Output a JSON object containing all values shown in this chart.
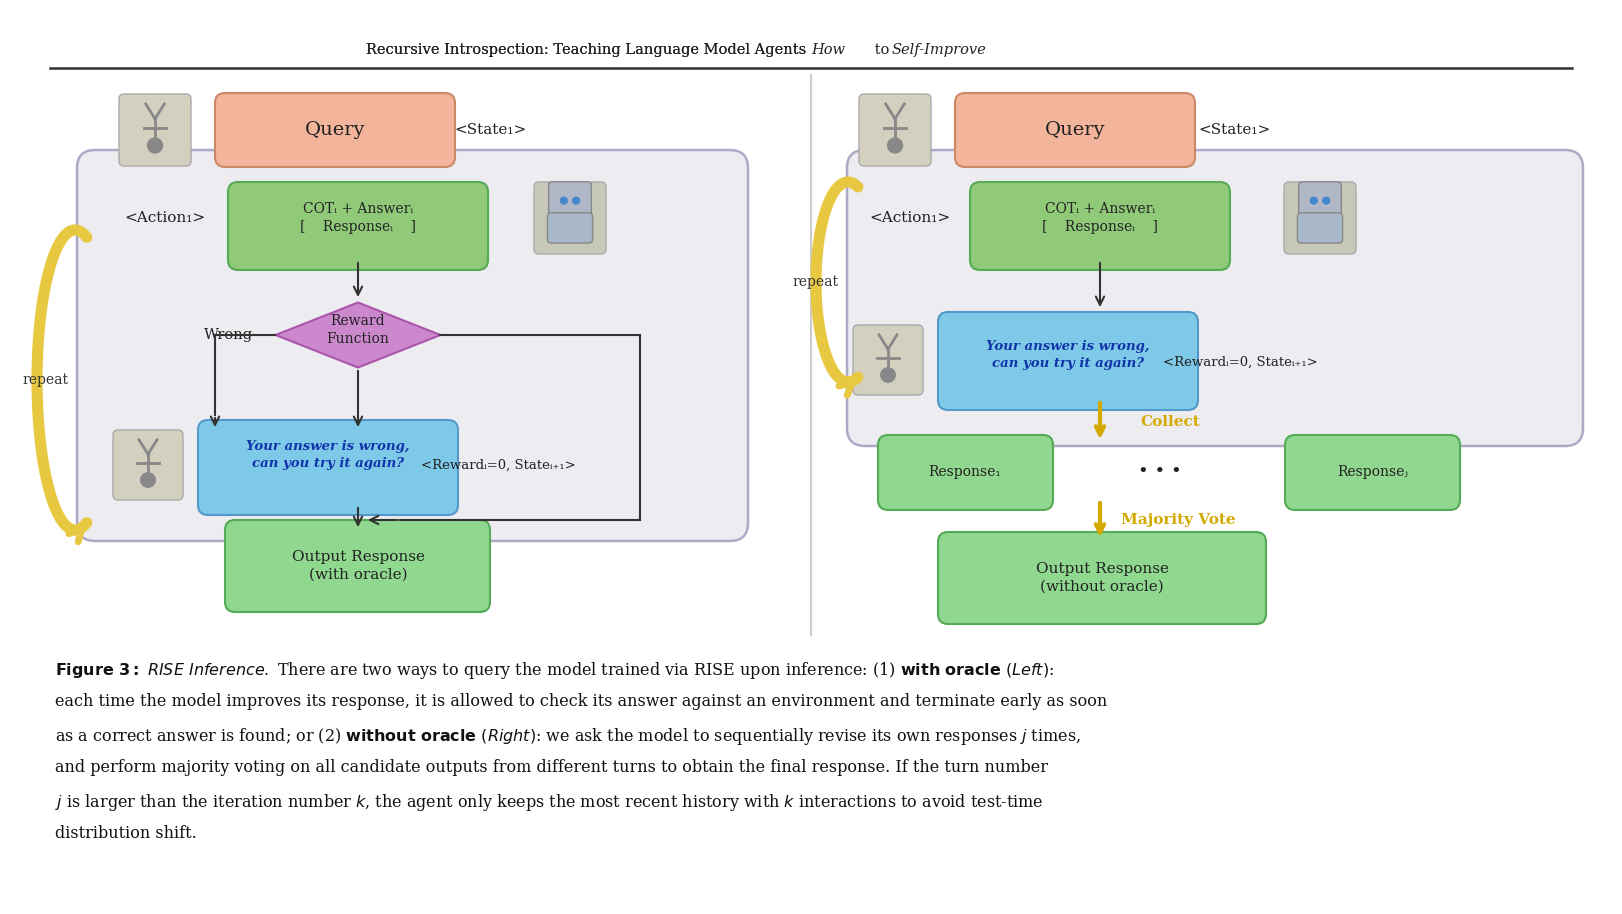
{
  "title": "Recursive Introspection: Teaching Language Model Agents How to Self-Improve",
  "title_italic_part": "How to Self-Improve",
  "background_color": "#ffffff",
  "divider_color": "#cccccc",
  "header_line_color": "#333333",
  "left": {
    "query_color": "#f2b49a",
    "query_text": "Query",
    "state1": "<State₁>",
    "action1": "<Action₁>",
    "cot_color": "#90c978",
    "cot_line1": "COTᵢ + Answerᵢ",
    "cot_line2": "[    Responseᵢ    ]",
    "robot_color": "#c8c8b0",
    "outer_color": "#e8e8ee",
    "outer_edge": "#9999bb",
    "diamond_color": "#cc88cc",
    "diamond_text1": "Reward",
    "diamond_text2": "Function",
    "wrong_text": "Wrong",
    "person_color": "#c8c8b0",
    "bubble_color": "#7ec8e8",
    "bubble_line1": "Your answer is wrong,",
    "bubble_line2": "can you try it again?",
    "reward_state": "<Rewardᵢ=0, Stateᵢ₊₁>",
    "output_color": "#90d890",
    "output_line1": "Output Response",
    "output_line2": "(with oracle)",
    "repeat_text": "repeat",
    "arrow_color": "#e8c840"
  },
  "right": {
    "query_color": "#f2b49a",
    "query_text": "Query",
    "state1": "<State₁>",
    "action1": "<Action₁>",
    "cot_color": "#90c978",
    "cot_line1": "COTᵢ + Answerᵢ",
    "cot_line2": "[    Responseᵢ    ]",
    "robot_color": "#c8c8b0",
    "outer_color": "#e8e8ee",
    "outer_edge": "#9999bb",
    "person_color": "#c8c8b0",
    "bubble_color": "#7ec8e8",
    "bubble_line1": "Your answer is wrong,",
    "bubble_line2": "can you try it again?",
    "reward_state": "<Rewardᵢ=0, Stateᵢ₊₁>",
    "collect_text": "Collect",
    "resp1_text": "Response₁",
    "dots_text": "• • •",
    "respj_text": "Responseⱼ",
    "resp_color": "#90d890",
    "majority_text": "Majority Vote",
    "output_color": "#90d890",
    "output_line1": "Output Response",
    "output_line2": "(without oracle)",
    "repeat_text": "repeat",
    "arrow_color": "#e8c840"
  },
  "caption_fig": "Figure 3:",
  "caption_title": " RISE Inference.",
  "caption_body": " There are two ways to query the model trained via RISE upon inference: (1) with oracle (Left): each time the model improves its response, it is allowed to check its answer against an environment and terminate early as soon as a correct answer is found; or (2) without oracle (Right): we ask the model to sequentially revise its own responses j times, and perform majority voting on all candidate outputs from different turns to obtain the final response. If the turn number j is larger than the iteration number k, the agent only keeps the most recent history with k interactions to avoid test-time distribution shift."
}
